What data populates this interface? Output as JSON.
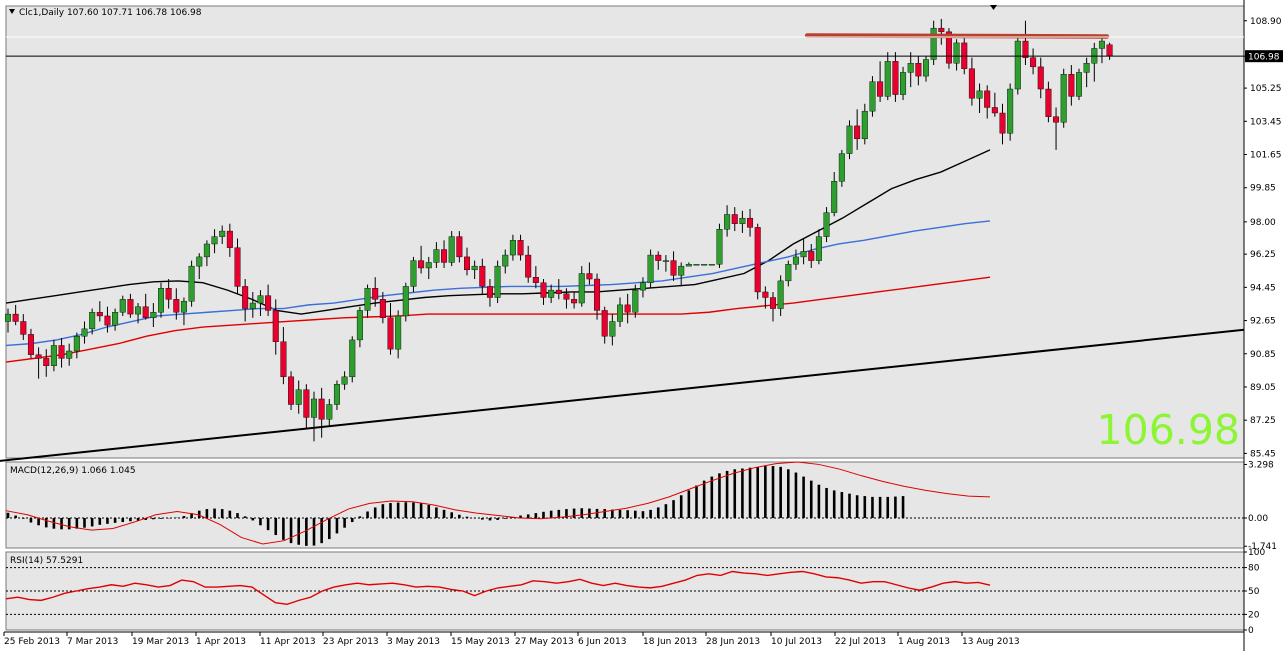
{
  "chart_data": [
    {
      "type": "candlestick",
      "symbol_info": "Clc1,Daily  107.60 107.71 106.78 106.98",
      "price_ticks": [
        "108.90",
        "106.98",
        "105.25",
        "103.45",
        "101.65",
        "99.85",
        "98.00",
        "96.25",
        "94.45",
        "92.65",
        "90.85",
        "89.05",
        "87.25",
        "85.45"
      ],
      "current_price": "106.98",
      "big_price_label": "106.98",
      "ylim": [
        85.2,
        109.7
      ],
      "x_labels": [
        "25 Feb 2013",
        "7 Mar 2013",
        "19 Mar 2013",
        "1 Apr 2013",
        "11 Apr 2013",
        "23 Apr 2013",
        "3 May 2013",
        "15 May 2013",
        "27 May 2013",
        "6 Jun 2013",
        "18 Jun 2013",
        "28 Jun 2013",
        "10 Jul 2013",
        "22 Jul 2013",
        "1 Aug 2013",
        "13 Aug 2013"
      ],
      "ohlc": [
        [
          92.6,
          93.3,
          92.0,
          93.0
        ],
        [
          93.0,
          93.5,
          92.4,
          92.6
        ],
        [
          92.6,
          93.0,
          91.6,
          91.9
        ],
        [
          91.9,
          92.2,
          90.6,
          90.8
        ],
        [
          90.8,
          91.2,
          89.5,
          90.6
        ],
        [
          90.6,
          91.1,
          89.6,
          90.2
        ],
        [
          90.2,
          91.6,
          89.9,
          91.3
        ],
        [
          91.3,
          91.7,
          90.1,
          90.6
        ],
        [
          90.6,
          91.4,
          90.2,
          91.0
        ],
        [
          91.0,
          92.0,
          90.6,
          91.8
        ],
        [
          91.8,
          92.6,
          91.4,
          92.2
        ],
        [
          92.2,
          93.3,
          91.9,
          93.1
        ],
        [
          93.1,
          93.7,
          92.6,
          92.9
        ],
        [
          92.9,
          93.4,
          92.0,
          92.4
        ],
        [
          92.4,
          93.3,
          92.1,
          93.1
        ],
        [
          93.1,
          94.0,
          92.9,
          93.8
        ],
        [
          93.8,
          94.1,
          92.8,
          93.0
        ],
        [
          93.0,
          93.6,
          92.5,
          93.4
        ],
        [
          93.4,
          94.1,
          92.7,
          92.8
        ],
        [
          92.8,
          93.6,
          92.3,
          93.1
        ],
        [
          93.1,
          94.7,
          92.8,
          94.4
        ],
        [
          94.4,
          94.9,
          93.3,
          93.8
        ],
        [
          93.8,
          94.4,
          92.7,
          93.1
        ],
        [
          93.1,
          93.9,
          92.4,
          93.7
        ],
        [
          93.7,
          95.9,
          93.4,
          95.6
        ],
        [
          95.6,
          96.3,
          94.9,
          96.1
        ],
        [
          96.1,
          97.0,
          95.6,
          96.8
        ],
        [
          96.8,
          97.6,
          96.3,
          97.2
        ],
        [
          97.2,
          97.8,
          96.8,
          97.5
        ],
        [
          97.5,
          97.9,
          96.1,
          96.6
        ],
        [
          96.6,
          97.1,
          94.1,
          94.5
        ],
        [
          94.5,
          94.9,
          92.6,
          93.3
        ],
        [
          93.3,
          94.2,
          92.8,
          93.6
        ],
        [
          93.6,
          94.3,
          92.9,
          94.0
        ],
        [
          94.0,
          94.6,
          92.9,
          93.2
        ],
        [
          93.2,
          93.8,
          90.8,
          91.5
        ],
        [
          91.5,
          92.3,
          89.2,
          89.6
        ],
        [
          89.6,
          89.9,
          87.8,
          88.1
        ],
        [
          88.1,
          89.4,
          87.6,
          88.9
        ],
        [
          88.9,
          89.2,
          86.8,
          87.4
        ],
        [
          87.4,
          88.8,
          86.1,
          88.4
        ],
        [
          88.4,
          89.0,
          86.3,
          87.3
        ],
        [
          87.3,
          88.4,
          86.9,
          88.1
        ],
        [
          88.1,
          89.4,
          87.8,
          89.2
        ],
        [
          89.2,
          89.9,
          88.9,
          89.6
        ],
        [
          89.6,
          91.8,
          89.3,
          91.6
        ],
        [
          91.6,
          93.4,
          91.2,
          93.2
        ],
        [
          93.2,
          94.6,
          92.8,
          94.4
        ],
        [
          94.4,
          95.0,
          93.4,
          93.8
        ],
        [
          93.8,
          94.2,
          92.5,
          92.8
        ],
        [
          92.8,
          93.6,
          90.8,
          91.1
        ],
        [
          91.1,
          93.2,
          90.6,
          92.9
        ],
        [
          92.9,
          94.7,
          92.6,
          94.5
        ],
        [
          94.5,
          96.1,
          94.2,
          95.9
        ],
        [
          95.9,
          96.7,
          95.2,
          95.5
        ],
        [
          95.5,
          96.1,
          94.9,
          95.8
        ],
        [
          95.8,
          96.9,
          95.5,
          96.5
        ],
        [
          96.5,
          97.0,
          95.5,
          95.8
        ],
        [
          95.8,
          97.5,
          95.6,
          97.2
        ],
        [
          97.2,
          97.5,
          95.8,
          96.1
        ],
        [
          96.1,
          96.6,
          95.1,
          95.4
        ],
        [
          95.4,
          95.9,
          94.9,
          95.6
        ],
        [
          95.6,
          96.0,
          94.1,
          94.5
        ],
        [
          94.5,
          94.9,
          93.4,
          93.9
        ],
        [
          93.9,
          95.9,
          93.6,
          95.6
        ],
        [
          95.6,
          96.5,
          95.2,
          96.2
        ],
        [
          96.2,
          97.3,
          95.9,
          97.0
        ],
        [
          97.0,
          97.3,
          95.9,
          96.2
        ],
        [
          96.2,
          96.7,
          94.7,
          95.0
        ],
        [
          95.0,
          95.6,
          94.4,
          94.7
        ],
        [
          94.7,
          94.9,
          93.5,
          93.9
        ],
        [
          93.9,
          94.6,
          93.6,
          94.3
        ],
        [
          94.3,
          94.9,
          93.8,
          94.1
        ],
        [
          94.1,
          94.4,
          93.3,
          93.8
        ],
        [
          93.8,
          94.2,
          93.3,
          93.6
        ],
        [
          93.6,
          95.6,
          93.4,
          95.2
        ],
        [
          95.2,
          95.8,
          94.6,
          94.9
        ],
        [
          94.9,
          95.2,
          92.7,
          93.2
        ],
        [
          93.2,
          93.4,
          91.4,
          91.8
        ],
        [
          91.8,
          93.0,
          91.3,
          92.6
        ],
        [
          92.6,
          93.9,
          92.3,
          93.5
        ],
        [
          93.5,
          94.1,
          92.5,
          93.1
        ],
        [
          93.1,
          94.6,
          92.8,
          94.3
        ],
        [
          94.3,
          95.0,
          93.9,
          94.7
        ],
        [
          94.7,
          96.5,
          94.4,
          96.2
        ],
        [
          96.2,
          96.4,
          95.4,
          95.9
        ],
        [
          95.9,
          96.2,
          95.3,
          95.9
        ],
        [
          95.9,
          96.4,
          94.8,
          95.1
        ],
        [
          95.1,
          95.8,
          94.5,
          95.6
        ],
        [
          95.6,
          95.8,
          95.6,
          95.7
        ],
        [
          95.7,
          95.7,
          95.7,
          95.7
        ],
        [
          95.7,
          95.7,
          95.7,
          95.7
        ],
        [
          95.7,
          95.7,
          95.7,
          95.7
        ],
        [
          95.7,
          97.9,
          95.5,
          97.6
        ],
        [
          97.6,
          98.9,
          97.2,
          98.4
        ],
        [
          98.4,
          98.8,
          97.5,
          97.9
        ],
        [
          97.9,
          98.6,
          97.4,
          98.2
        ],
        [
          98.2,
          98.7,
          97.2,
          97.7
        ],
        [
          97.7,
          97.9,
          93.8,
          94.2
        ],
        [
          94.2,
          94.5,
          93.3,
          93.9
        ],
        [
          93.9,
          94.2,
          92.6,
          93.3
        ],
        [
          93.3,
          95.1,
          92.9,
          94.8
        ],
        [
          94.8,
          95.9,
          94.5,
          95.7
        ],
        [
          95.7,
          96.5,
          95.4,
          96.1
        ],
        [
          96.1,
          97.1,
          95.7,
          96.4
        ],
        [
          96.4,
          96.8,
          95.5,
          95.9
        ],
        [
          95.9,
          97.6,
          95.7,
          97.2
        ],
        [
          97.2,
          98.8,
          96.9,
          98.5
        ],
        [
          98.5,
          100.7,
          98.3,
          100.2
        ],
        [
          100.2,
          101.9,
          99.9,
          101.7
        ],
        [
          101.7,
          103.5,
          101.4,
          103.2
        ],
        [
          103.2,
          104.1,
          101.9,
          102.5
        ],
        [
          102.5,
          104.4,
          102.2,
          104.0
        ],
        [
          104.0,
          105.9,
          103.7,
          105.6
        ],
        [
          105.6,
          106.7,
          104.5,
          104.8
        ],
        [
          104.8,
          107.2,
          104.6,
          106.7
        ],
        [
          106.7,
          107.2,
          104.5,
          104.9
        ],
        [
          104.9,
          106.4,
          104.6,
          106.1
        ],
        [
          106.1,
          107.2,
          105.3,
          106.6
        ],
        [
          106.6,
          107.0,
          105.4,
          105.9
        ],
        [
          105.9,
          107.0,
          105.6,
          106.8
        ],
        [
          106.8,
          108.9,
          106.5,
          108.5
        ],
        [
          108.5,
          109.0,
          107.6,
          108.3
        ],
        [
          108.3,
          108.5,
          106.3,
          106.6
        ],
        [
          106.6,
          107.9,
          106.2,
          107.7
        ],
        [
          107.7,
          108.0,
          106.0,
          106.3
        ],
        [
          106.3,
          106.9,
          104.3,
          104.7
        ],
        [
          104.7,
          105.5,
          103.9,
          105.1
        ],
        [
          105.1,
          105.4,
          103.6,
          104.2
        ],
        [
          104.2,
          105.0,
          103.7,
          103.9
        ],
        [
          103.9,
          104.4,
          102.2,
          102.8
        ],
        [
          102.8,
          105.5,
          102.4,
          105.2
        ],
        [
          105.2,
          108.0,
          104.9,
          107.8
        ],
        [
          107.8,
          108.9,
          106.5,
          106.9
        ],
        [
          106.9,
          107.4,
          106.0,
          106.4
        ],
        [
          106.4,
          106.9,
          104.7,
          105.2
        ],
        [
          105.2,
          105.6,
          103.4,
          103.7
        ],
        [
          103.7,
          104.2,
          101.9,
          103.4
        ],
        [
          103.4,
          106.3,
          103.1,
          106.0
        ],
        [
          106.0,
          106.5,
          104.3,
          104.8
        ],
        [
          104.8,
          106.3,
          104.6,
          106.1
        ],
        [
          106.1,
          106.9,
          105.3,
          106.6
        ],
        [
          106.6,
          107.7,
          105.6,
          107.4
        ],
        [
          107.4,
          108.1,
          106.6,
          107.8
        ],
        [
          107.6,
          107.71,
          106.78,
          106.98
        ]
      ],
      "moving_averages": [
        {
          "color": "#000000",
          "values": [
            93.6,
            93.8,
            94.0,
            94.2,
            94.4,
            94.6,
            94.75,
            94.8,
            94.7,
            94.3,
            93.8,
            93.2,
            93.0,
            93.2,
            93.4,
            93.6,
            93.75,
            93.9,
            94.0,
            94.05,
            94.1,
            94.1,
            94.15,
            94.2,
            94.2,
            94.3,
            94.4,
            94.5,
            94.6,
            94.9,
            95.2,
            95.9,
            96.8,
            97.5,
            98.2,
            99.0,
            99.8,
            100.3,
            100.7,
            101.3,
            101.9
          ]
        },
        {
          "color": "#3a6fd8",
          "values": [
            91.3,
            91.4,
            91.6,
            91.9,
            92.3,
            92.6,
            92.9,
            93.0,
            93.1,
            93.2,
            93.3,
            93.3,
            93.5,
            93.6,
            93.8,
            94.0,
            94.15,
            94.3,
            94.4,
            94.45,
            94.5,
            94.5,
            94.5,
            94.55,
            94.6,
            94.7,
            94.8,
            95.0,
            95.2,
            95.5,
            95.8,
            96.1,
            96.5,
            96.8,
            97.0,
            97.25,
            97.5,
            97.7,
            97.9,
            98.05
          ]
        },
        {
          "color": "#e00000",
          "values": [
            90.4,
            90.6,
            90.8,
            91.1,
            91.4,
            91.8,
            92.1,
            92.3,
            92.4,
            92.5,
            92.6,
            92.7,
            92.8,
            92.85,
            92.9,
            93.0,
            93.0,
            93.0,
            93.0,
            93.0,
            93.0,
            93.0,
            93.0,
            93.0,
            93.0,
            93.1,
            93.3,
            93.45,
            93.6,
            93.8,
            94.0,
            94.2,
            94.4,
            94.6,
            94.8,
            95.0
          ]
        }
      ],
      "trendline": {
        "from": [
          -2,
          85.0
        ],
        "to": [
          170,
          92.15
        ]
      },
      "resistance_line": {
        "from": [
          108,
          108.1
        ],
        "to": [
          143,
          108.05
        ],
        "color": "#b5412e"
      }
    },
    {
      "type": "bar",
      "label": "MACD(12,26,9) 1.066 1.045",
      "ticks": [
        "3.298",
        "0.00",
        "-1.741"
      ],
      "ylim": [
        -1.85,
        3.45
      ],
      "histogram": [
        0.32,
        0.15,
        -0.05,
        -0.28,
        -0.45,
        -0.58,
        -0.66,
        -0.7,
        -0.7,
        -0.66,
        -0.6,
        -0.52,
        -0.42,
        -0.36,
        -0.3,
        -0.25,
        -0.2,
        -0.16,
        -0.12,
        -0.08,
        -0.05,
        -0.02,
        0.02,
        0.12,
        0.3,
        0.45,
        0.55,
        0.58,
        0.55,
        0.45,
        0.3,
        0.1,
        -0.15,
        -0.45,
        -0.75,
        -1.05,
        -1.35,
        -1.55,
        -1.65,
        -1.72,
        -1.7,
        -1.55,
        -1.3,
        -0.95,
        -0.6,
        -0.25,
        0.1,
        0.4,
        0.65,
        0.85,
        0.92,
        0.95,
        0.97,
        0.95,
        0.9,
        0.8,
        0.65,
        0.5,
        0.35,
        0.2,
        0.08,
        -0.02,
        -0.1,
        -0.15,
        -0.12,
        -0.05,
        0.05,
        0.15,
        0.22,
        0.3,
        0.38,
        0.45,
        0.5,
        0.55,
        0.58,
        0.6,
        0.58,
        0.56,
        0.55,
        0.52,
        0.5,
        0.48,
        0.45,
        0.42,
        0.5,
        0.65,
        0.85,
        1.1,
        1.4,
        1.7,
        2.0,
        2.3,
        2.55,
        2.75,
        2.9,
        3.0,
        3.05,
        3.1,
        3.15,
        3.2,
        3.2,
        3.15,
        3.0,
        2.8,
        2.55,
        2.3,
        2.05,
        1.85,
        1.7,
        1.6,
        1.5,
        1.4,
        1.35,
        1.3,
        1.3,
        1.3,
        1.32,
        1.35
      ],
      "signal": [
        0.45,
        0.2,
        -0.2,
        -0.55,
        -0.75,
        -0.65,
        -0.25,
        0.2,
        0.4,
        0.2,
        -0.4,
        -1.2,
        -1.6,
        -1.4,
        -0.8,
        -0.1,
        0.55,
        0.9,
        1.05,
        1.0,
        0.8,
        0.5,
        0.3,
        0.15,
        0.0,
        -0.05,
        0.05,
        0.2,
        0.4,
        0.6,
        0.9,
        1.3,
        1.8,
        2.3,
        2.75,
        3.1,
        3.35,
        3.45,
        3.3,
        3.0,
        2.6,
        2.25,
        1.95,
        1.7,
        1.5,
        1.35,
        1.3
      ]
    },
    {
      "type": "line",
      "label": "RSI(14) 57.5291",
      "ticks": [
        "100",
        "80",
        "50",
        "20",
        "0"
      ],
      "ylim": [
        0,
        100
      ],
      "values": [
        40,
        42,
        39,
        38,
        42,
        47,
        50,
        53,
        55,
        58,
        56,
        60,
        58,
        55,
        57,
        64,
        62,
        55,
        55,
        56,
        57,
        55,
        45,
        35,
        33,
        38,
        42,
        50,
        55,
        58,
        60,
        58,
        59,
        60,
        58,
        55,
        56,
        55,
        52,
        50,
        44,
        50,
        54,
        56,
        58,
        63,
        62,
        60,
        62,
        65,
        60,
        57,
        60,
        57,
        55,
        54,
        56,
        60,
        64,
        70,
        72,
        70,
        75,
        73,
        72,
        70,
        72,
        74,
        75,
        72,
        68,
        67,
        64,
        60,
        62,
        62,
        58,
        54,
        51,
        55,
        60,
        62,
        60,
        61,
        57.5
      ]
    }
  ]
}
